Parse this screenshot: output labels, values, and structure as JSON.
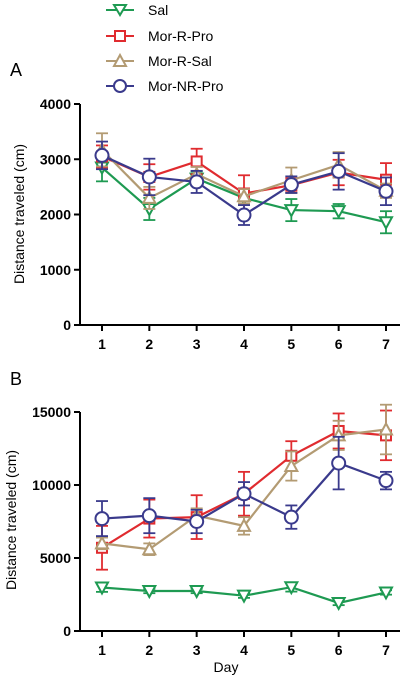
{
  "series_styles": [
    {
      "name": "Sal",
      "color": "#1e9a52",
      "marker": "triangle-down"
    },
    {
      "name": "Mor-R-Pro",
      "color": "#e02b2f",
      "marker": "square"
    },
    {
      "name": "Mor-R-Sal",
      "color": "#b39b73",
      "marker": "triangle-up"
    },
    {
      "name": "Mor-NR-Pro",
      "color": "#3a3a8c",
      "marker": "circle"
    }
  ],
  "chart_data": [
    {
      "type": "line",
      "panel_label": "A",
      "x": [
        1,
        2,
        3,
        4,
        5,
        6,
        7
      ],
      "xticks": [
        "1",
        "2",
        "3",
        "4",
        "5",
        "6",
        "7"
      ],
      "ylabel": "Distance traveled (cm)",
      "xlabel": "",
      "ylim": [
        0,
        4000
      ],
      "yticks": [
        0,
        1000,
        2000,
        3000,
        4000
      ],
      "series": [
        {
          "name": "Sal",
          "values": [
            2850,
            2100,
            2650,
            2300,
            2080,
            2060,
            1860
          ],
          "errors": [
            250,
            200,
            130,
            130,
            200,
            130,
            200
          ]
        },
        {
          "name": "Mor-R-Pro",
          "values": [
            3050,
            2680,
            2960,
            2380,
            2530,
            2760,
            2630
          ],
          "errors": [
            200,
            230,
            230,
            330,
            130,
            230,
            300
          ]
        },
        {
          "name": "Mor-R-Sal",
          "values": [
            3170,
            2300,
            2730,
            2330,
            2620,
            2900,
            2430
          ],
          "errors": [
            300,
            200,
            130,
            130,
            230,
            230,
            130
          ]
        },
        {
          "name": "Mor-NR-Pro",
          "values": [
            3070,
            2680,
            2590,
            1990,
            2540,
            2780,
            2420
          ],
          "errors": [
            250,
            330,
            200,
            180,
            150,
            330,
            250
          ]
        }
      ]
    },
    {
      "type": "line",
      "panel_label": "B",
      "x": [
        1,
        2,
        3,
        4,
        5,
        6,
        7
      ],
      "xticks": [
        "1",
        "2",
        "3",
        "4",
        "5",
        "6",
        "7"
      ],
      "ylabel": "Distance traveled (cm)",
      "xlabel": "Day",
      "ylim": [
        0,
        15000
      ],
      "yticks": [
        0,
        5000,
        10000,
        15000
      ],
      "series": [
        {
          "name": "Sal",
          "values": [
            2980,
            2740,
            2740,
            2420,
            3000,
            1920,
            2640
          ],
          "errors": [
            300,
            150,
            150,
            150,
            300,
            150,
            150
          ]
        },
        {
          "name": "Mor-R-Pro",
          "values": [
            5700,
            7700,
            7800,
            9400,
            12000,
            13700,
            13400
          ],
          "errors": [
            1500,
            1300,
            1500,
            1500,
            1000,
            1200,
            1700
          ]
        },
        {
          "name": "Mor-R-Sal",
          "values": [
            6000,
            5600,
            7900,
            7200,
            11300,
            13400,
            13800
          ],
          "errors": [
            400,
            400,
            500,
            600,
            1000,
            1000,
            1700
          ]
        },
        {
          "name": "Mor-NR-Pro",
          "values": [
            7700,
            7900,
            7500,
            9400,
            7800,
            11500,
            10300
          ],
          "errors": [
            1200,
            1200,
            800,
            800,
            800,
            1800,
            600
          ]
        }
      ]
    }
  ]
}
